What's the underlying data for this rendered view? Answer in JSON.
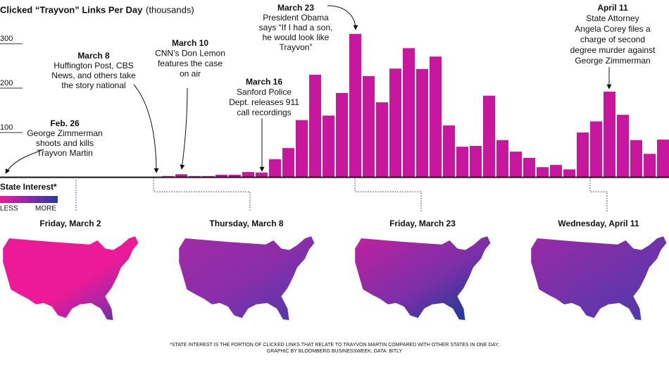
{
  "chart_data": {
    "type": "bar",
    "title": "Clicked “Trayvon” Links Per Day",
    "title_unit": "(thousands)",
    "categories": [
      null,
      null,
      null,
      null,
      null,
      null,
      null,
      null,
      null,
      null,
      null,
      null,
      null,
      null,
      null,
      null,
      null,
      null,
      null,
      null,
      null,
      null,
      null,
      null,
      null,
      null,
      null,
      null,
      null,
      null,
      null,
      null,
      null,
      null,
      null,
      null,
      null,
      null
    ],
    "values": [
      2,
      6,
      2,
      2,
      5,
      5,
      11,
      10,
      40,
      65,
      128,
      230,
      138,
      189,
      322,
      227,
      168,
      244,
      290,
      243,
      271,
      116,
      68,
      70,
      183,
      83,
      57,
      43,
      22,
      27,
      17,
      100,
      125,
      192,
      140,
      83,
      52,
      84
    ],
    "color": "#c8169e",
    "ylim": [
      0,
      350
    ],
    "yticks": [
      100,
      200,
      300
    ],
    "annotations": [
      {
        "date": "Feb. 26",
        "lines": [
          "George Zimmerman",
          "shoots and kills",
          "Trayvon Martin"
        ]
      },
      {
        "date": "March 8",
        "lines": [
          "Huffington Post, CBS",
          "News, and others take",
          "the story national"
        ]
      },
      {
        "date": "March 10",
        "lines": [
          "CNN’s Don Lemon",
          "features the case",
          "on air"
        ]
      },
      {
        "date": "March 16",
        "lines": [
          "Sanford Police",
          "Dept. releases 911",
          "call recordings"
        ]
      },
      {
        "date": "March 23",
        "lines": [
          "President Obama",
          "says “If I had a son,",
          "he would look like",
          "Trayvon”"
        ]
      },
      {
        "date": "April 11",
        "lines": [
          "State Attorney",
          "Angela Corey files a",
          "charge of second",
          "degree murder against",
          "George Zimmerman"
        ]
      }
    ]
  },
  "legend": {
    "title": "State Interest*",
    "low": "LESS",
    "high": "MORE"
  },
  "maps": [
    {
      "title": "Friday, March 2"
    },
    {
      "title": "Thursday, March 8"
    },
    {
      "title": "Friday, March 23"
    },
    {
      "title": "Wednesday, April 11"
    }
  ],
  "footnote": [
    "*STATE INTEREST IS THE PORTION OF CLICKED LINKS THAT RELATE TO TRAYVON MARTIN COMPARED WITH OTHER STATES IN ONE DAY;",
    "GRAPHIC BY BLOOMBERG BUSINESSWEEK; DATA: BITLY"
  ]
}
